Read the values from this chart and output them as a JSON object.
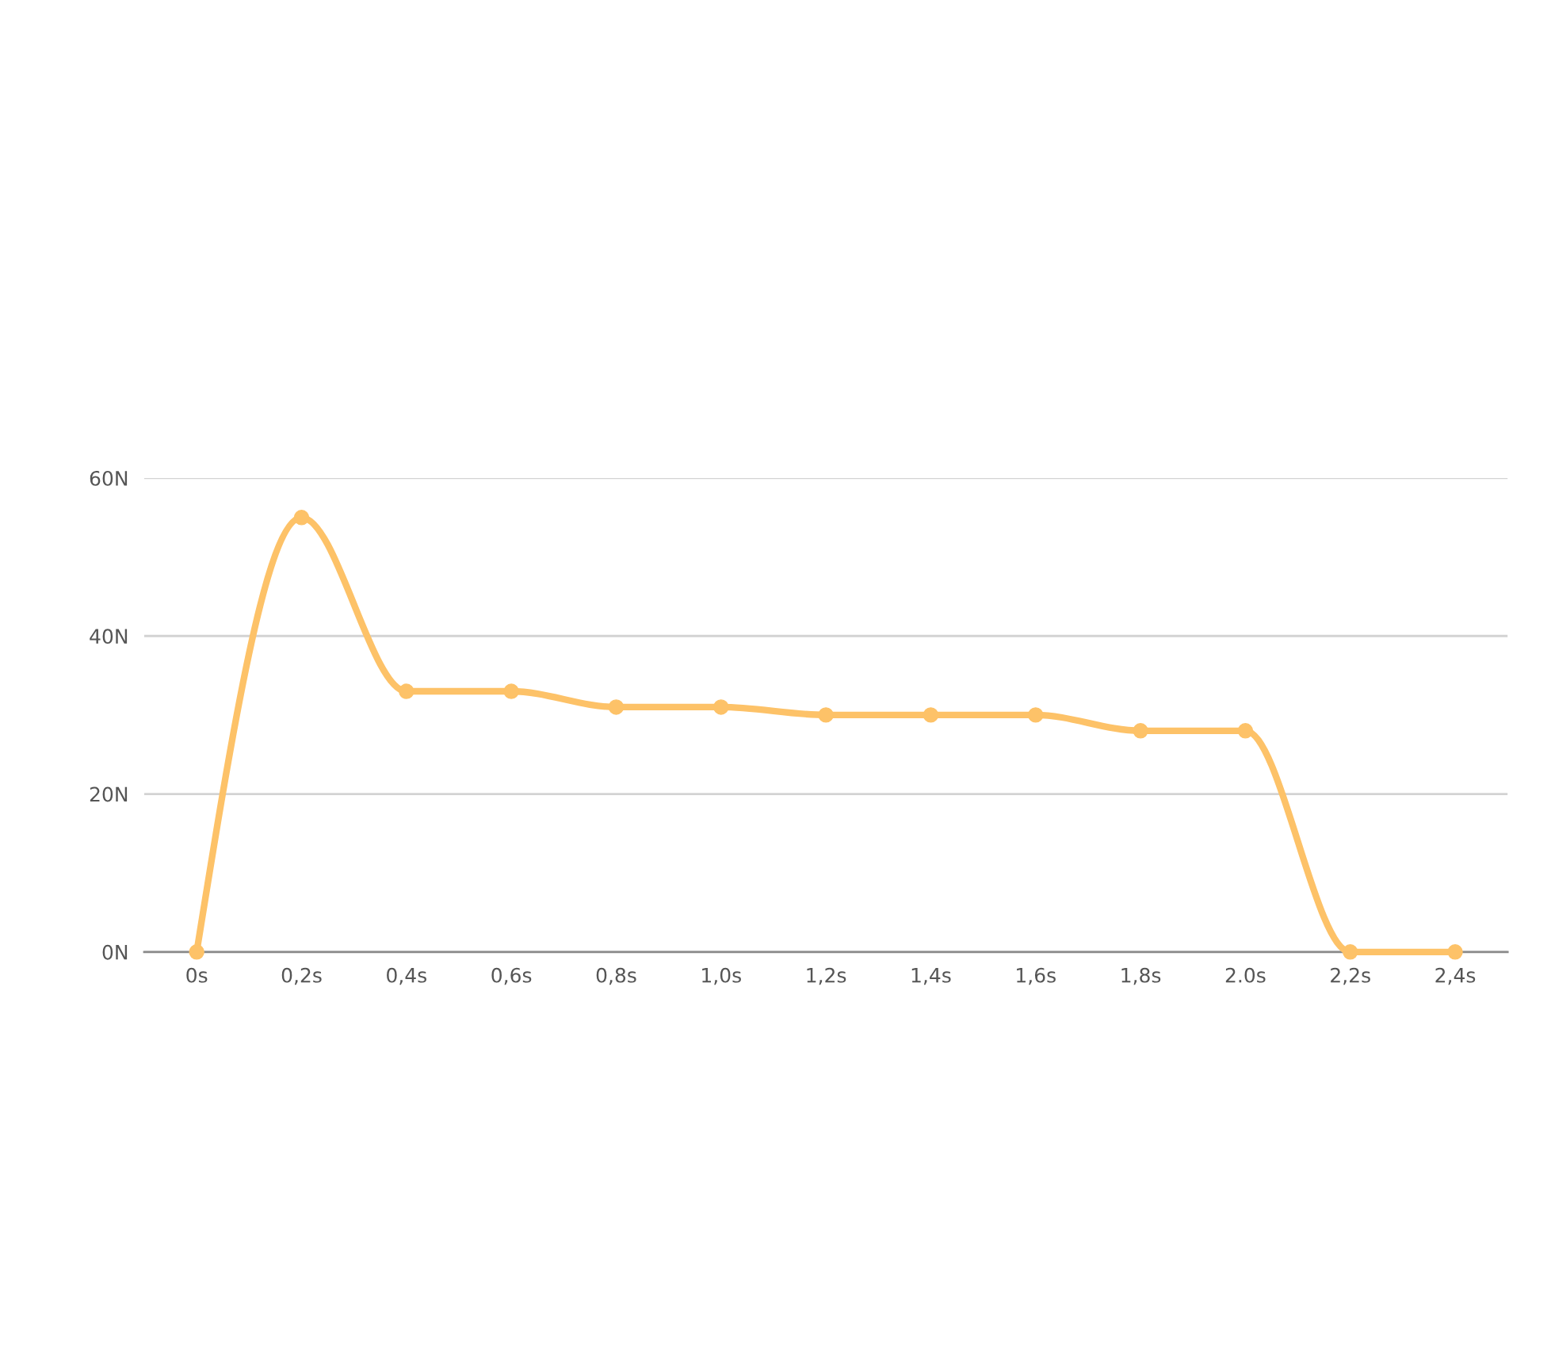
{
  "chart_data": {
    "type": "line",
    "categories": [
      "0s",
      "0,2s",
      "0,4s",
      "0,6s",
      "0,8s",
      "1,0s",
      "1,2s",
      "1,4s",
      "1,6s",
      "1,8s",
      "2.0s",
      "2,2s",
      "2,4s"
    ],
    "series": [
      {
        "color": "#fdc268",
        "values": [
          0,
          55,
          33,
          33,
          31,
          31,
          30,
          30,
          30,
          28,
          28,
          0,
          0
        ]
      }
    ],
    "ylim": [
      0,
      60
    ],
    "yticks": [
      {
        "value": 0,
        "label": "0N"
      },
      {
        "value": 20,
        "label": "20N"
      },
      {
        "value": 40,
        "label": "40N"
      },
      {
        "value": 60,
        "label": "60N"
      }
    ],
    "grid": "y",
    "legend": false,
    "marker": "circle",
    "line_style": "solid"
  }
}
